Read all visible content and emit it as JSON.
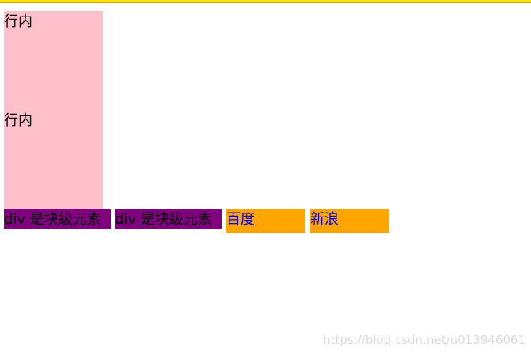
{
  "blocks": [
    {
      "label": "行内"
    },
    {
      "label": "行内"
    }
  ],
  "spans": [
    {
      "label": "div 是块级元素"
    },
    {
      "label": "div 是块级元素"
    }
  ],
  "links": [
    {
      "label": "百度"
    },
    {
      "label": "新浪"
    }
  ],
  "watermark": "https://blog.csdn.net/u013946061"
}
